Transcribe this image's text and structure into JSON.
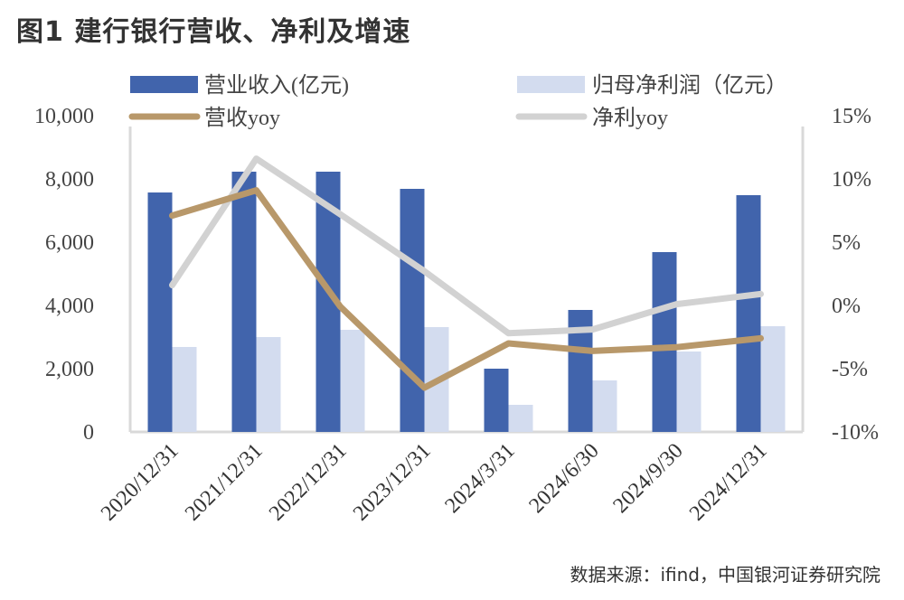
{
  "title": "图1  建行银行营收、净利及增速",
  "source": "数据来源：ifind，中国银河证券研究院",
  "legend": {
    "revenue": "营业收入(亿元)",
    "net_profit": "归母净利润（亿元）",
    "revenue_yoy": "营收yoy",
    "net_profit_yoy": "净利yoy"
  },
  "colors": {
    "revenue": "#4164AC",
    "net_profit": "#D3DCEF",
    "revenue_yoy": "#B8986A",
    "net_profit_yoy": "#D2D2D2",
    "axis": "#D9D9D9"
  },
  "chart_data": {
    "type": "bar+line",
    "title": "图1  建行银行营收、净利及增速",
    "categories": [
      "2020/12/31",
      "2021/12/31",
      "2022/12/31",
      "2023/12/31",
      "2024/3/31",
      "2024/6/30",
      "2024/9/30",
      "2024/12/31"
    ],
    "series": [
      {
        "name": "营业收入(亿元)",
        "type": "bar",
        "axis": "left",
        "values": [
          7571,
          8229,
          8229,
          7686,
          2000,
          3857,
          5686,
          7486
        ]
      },
      {
        "name": "归母净利润（亿元）",
        "type": "bar",
        "axis": "left",
        "values": [
          2686,
          3000,
          3229,
          3314,
          857,
          1629,
          2543,
          3343
        ]
      },
      {
        "name": "营收yoy",
        "type": "line",
        "axis": "right",
        "values": [
          7.1,
          9.1,
          -0.1,
          -6.5,
          -3.0,
          -3.6,
          -3.3,
          -2.6
        ]
      },
      {
        "name": "净利yoy",
        "type": "line",
        "axis": "right",
        "values": [
          1.6,
          11.6,
          7.2,
          2.7,
          -2.2,
          -1.9,
          0.1,
          0.9
        ]
      }
    ],
    "left_axis": {
      "ticks": [
        "0",
        "2,000",
        "4,000",
        "6,000",
        "8,000",
        "10,000"
      ],
      "ylim": [
        0,
        10000
      ]
    },
    "right_axis": {
      "ticks": [
        "-10%",
        "-5%",
        "0%",
        "5%",
        "10%",
        "15%"
      ],
      "ylim": [
        -10,
        15
      ]
    },
    "xlabel": "",
    "ylabel": "",
    "grid": false,
    "legend_position": "top"
  }
}
